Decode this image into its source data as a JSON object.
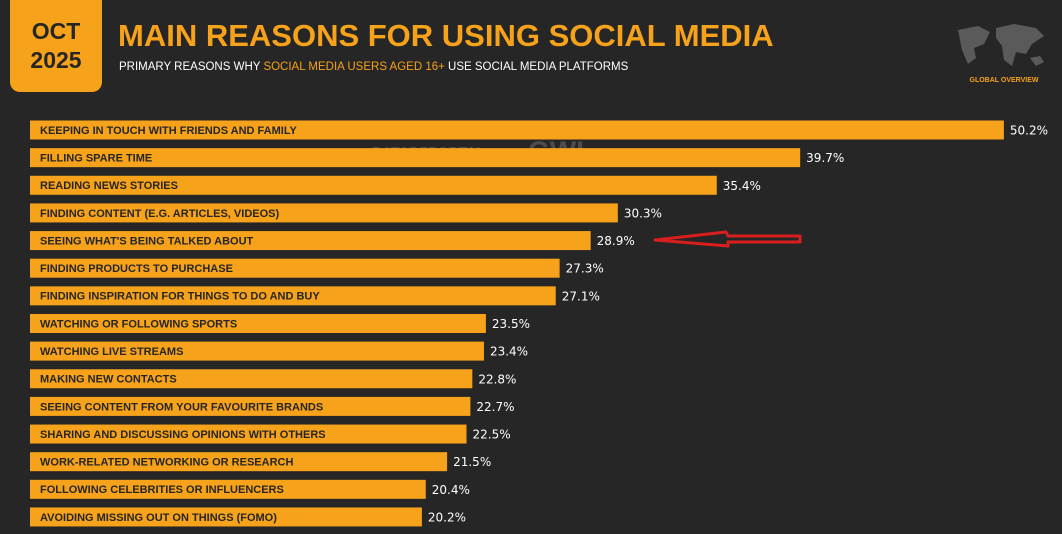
{
  "chart_data": {
    "type": "bar",
    "badge": [
      "OCT",
      "2025"
    ],
    "title": "MAIN REASONS FOR USING SOCIAL MEDIA",
    "subtitle": [
      "PRIMARY REASONS WHY",
      "SOCIAL MEDIA USERS AGED 16+",
      "USE SOCIAL MEDIA PLATFORMS"
    ],
    "corner_label": "GLOBAL OVERVIEW",
    "watermark": [
      "DATAREPORTAL",
      "GWI."
    ],
    "color": "#f7a21b",
    "categories": [
      "KEEPING IN TOUCH WITH FRIENDS AND FAMILY",
      "FILLING SPARE TIME",
      "READING NEWS STORIES",
      "FINDING CONTENT (E.G. ARTICLES, VIDEOS)",
      "SEEING WHAT'S BEING TALKED ABOUT",
      "FINDING PRODUCTS TO PURCHASE",
      "FINDING INSPIRATION FOR THINGS TO DO AND BUY",
      "WATCHING OR FOLLOWING SPORTS",
      "WATCHING LIVE STREAMS",
      "MAKING NEW CONTACTS",
      "SEEING CONTENT FROM YOUR FAVOURITE BRANDS",
      "SHARING AND DISCUSSING OPINIONS WITH OTHERS",
      "WORK-RELATED NETWORKING OR RESEARCH",
      "FOLLOWING CELEBRITIES OR INFLUENCERS",
      "AVOIDING MISSING OUT ON THINGS (FOMO)"
    ],
    "values": [
      50.2,
      39.7,
      35.4,
      30.3,
      28.9,
      27.3,
      27.1,
      23.5,
      23.4,
      22.8,
      22.7,
      22.5,
      21.5,
      20.4,
      20.2
    ],
    "value_labels": [
      "50.2%",
      "39.7%",
      "35.4%",
      "30.3%",
      "28.9%",
      "27.3%",
      "27.1%",
      "23.5%",
      "23.4%",
      "22.8%",
      "22.7%",
      "22.5%",
      "21.5%",
      "20.4%",
      "20.2%"
    ]
  }
}
